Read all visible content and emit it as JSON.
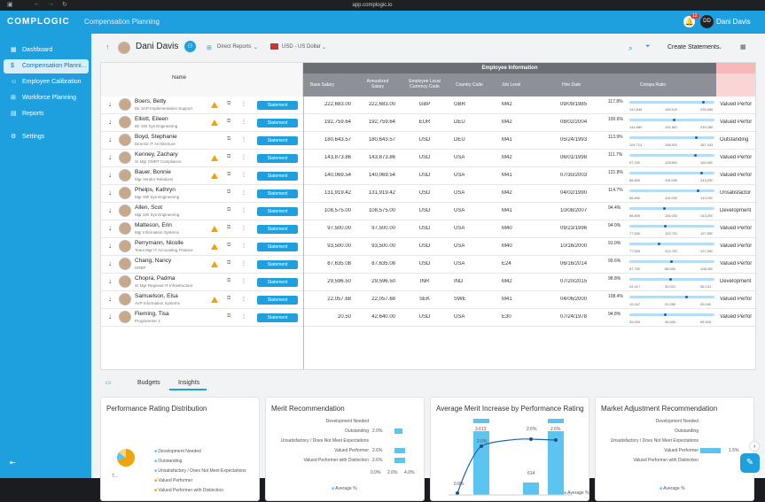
{
  "browser": {
    "url": "app.complogic.io"
  },
  "app": {
    "logo": "COMPLOGIC",
    "page_title": "Compensation Planning",
    "notifications": "12",
    "user_initials": "DD",
    "user_name": "Dani Davis"
  },
  "sidebar": {
    "items": [
      {
        "label": "Dashboard",
        "icon": "grid-icon"
      },
      {
        "label": "Compensation Planni...",
        "icon": "dollar-icon",
        "active": true
      },
      {
        "label": "Employee Calibration",
        "icon": "users-icon"
      },
      {
        "label": "Workforce Planning",
        "icon": "org-icon"
      },
      {
        "label": "Reports",
        "icon": "report-icon"
      },
      {
        "label": "Settings",
        "icon": "gear-icon"
      }
    ]
  },
  "header": {
    "manager": "Dani Davis",
    "view": "Direct Reports",
    "currency": "USD - US Dollar",
    "create": "Create Statements"
  },
  "grid": {
    "group_header": "Employee Information",
    "columns": {
      "name": "Name",
      "base_salary": "Base Salary",
      "annualized": "Annualized Salary",
      "local_currency": "Employee Local Currency Code",
      "country": "Country Code",
      "job_level": "Job Level",
      "hire_date": "Hire Date",
      "compa": "Compa Ratio",
      "rating": ""
    },
    "statement_label": "Statement",
    "rows": [
      {
        "name": "Boers, Betty",
        "title": "Dir SAP Implementation Support",
        "warn": true,
        "base": "222,683.00",
        "annual": "222,683.00",
        "cur": "GBP",
        "country": "GBR",
        "level": "M42",
        "hire": "09/09/1985",
        "compa": "117.8%",
        "cpos": 0.88,
        "min": "142,648",
        "mid": "169,019",
        "max": "235,056",
        "rating": "Valued Perfor"
      },
      {
        "name": "Elliott, Eileen",
        "title": "Dir SW Sys Engineering",
        "warn": true,
        "base": "192,759.64",
        "annual": "192,759.64",
        "cur": "EUR",
        "country": "DEU",
        "level": "M42",
        "hire": "08/02/2004",
        "compa": "100.6%",
        "cpos": 0.53,
        "min": "144,089",
        "mid": "191,687",
        "max": "239,286",
        "rating": "Valued Perfor"
      },
      {
        "name": "Boyd, Stephanie",
        "title": "Director IT Architecture",
        "warn": false,
        "base": "180,643.57",
        "annual": "180,643.57",
        "cur": "USD",
        "country": "DEU",
        "level": "M41",
        "hire": "05/24/1993",
        "compa": "113.9%",
        "cpos": 0.8,
        "min": "119,714",
        "mid": "158,929",
        "max": "187,434",
        "rating": "Outstanding"
      },
      {
        "name": "Kenney, Zachary",
        "title": "Sr Mgr CMRT Compliance",
        "warn": true,
        "base": "143,873.86",
        "annual": "143,873.86",
        "cur": "USD",
        "country": "USA",
        "level": "M42",
        "hire": "06/01/1998",
        "compa": "111.7%",
        "cpos": 0.78,
        "min": "97,200",
        "mid": "128,800",
        "max": "160,400",
        "rating": "Valued Perfor"
      },
      {
        "name": "Bauer, Bonnie",
        "title": "Mgr Vendor Relations",
        "warn": true,
        "base": "140,069.54",
        "annual": "140,069.54",
        "cur": "USD",
        "country": "USA",
        "level": "M41",
        "hire": "07/30/2003",
        "compa": "121.8%",
        "cpos": 0.86,
        "min": "86,800",
        "mid": "115,000",
        "max": "143,200",
        "rating": "Valued Perfor"
      },
      {
        "name": "Phelps, Kathryn",
        "title": "Mgr SW Sys Engineering",
        "warn": false,
        "base": "131,919.42",
        "annual": "131,919.42",
        "cur": "USD",
        "country": "USA",
        "level": "M42",
        "hire": "04/02/1990",
        "compa": "114.7%",
        "cpos": 0.82,
        "min": "86,800",
        "mid": "115,000",
        "max": "143,200",
        "rating": "Unsatisfactor"
      },
      {
        "name": "Allen, Scot",
        "title": "Mgr SW Sys Engineering",
        "warn": false,
        "base": "108,575.00",
        "annual": "108,575.00",
        "cur": "USD",
        "country": "USA",
        "level": "M41",
        "hire": "10/08/2007",
        "compa": "94.4%",
        "cpos": 0.41,
        "min": "86,800",
        "mid": "115,000",
        "max": "143,200",
        "rating": "Development"
      },
      {
        "name": "Matteson, Erin",
        "title": "Mgr Information Systems",
        "warn": true,
        "base": "97,500.00",
        "annual": "97,500.00",
        "cur": "USD",
        "country": "USA",
        "level": "M40",
        "hire": "09/23/1996",
        "compa": "94.9%",
        "cpos": 0.42,
        "min": "77,500",
        "mid": "102,700",
        "max": "127,900",
        "rating": "Valued Perfor"
      },
      {
        "name": "Perrymann, Nicolle",
        "title": "Team Mgr IT Accounting Finance",
        "warn": true,
        "base": "93,500.00",
        "annual": "93,500.00",
        "cur": "USD",
        "country": "USA",
        "level": "M40",
        "hire": "10/16/2000",
        "compa": "91.0%",
        "cpos": 0.34,
        "min": "77,500",
        "mid": "102,700",
        "max": "127,900",
        "rating": "Valued Perfor"
      },
      {
        "name": "Chang, Nancy",
        "title": "HRBP",
        "warn": true,
        "base": "87,635.08",
        "annual": "87,635.08",
        "cur": "USD",
        "country": "USA",
        "level": "E24",
        "hire": "06/16/2014",
        "compa": "99.6%",
        "cpos": 0.49,
        "min": "67,700",
        "mid": "88,000",
        "max": "108,400",
        "rating": "Valued Perfor"
      },
      {
        "name": "Chopra, Padma",
        "title": "Sr Mgr Regional IT Infrastructure",
        "warn": false,
        "base": "29,596.50",
        "annual": "29,596.50",
        "cur": "INR",
        "country": "IND",
        "level": "M42",
        "hire": "07/20/2015",
        "compa": "98.8%",
        "cpos": 0.48,
        "min": "24,417",
        "mid": "30,011",
        "max": "36,131",
        "rating": "Development"
      },
      {
        "name": "Samuelson, Elsa",
        "title": "AVP Information Systems",
        "warn": true,
        "base": "22,057.68",
        "annual": "22,057.68",
        "cur": "SEK",
        "country": "SWE",
        "level": "M41",
        "hire": "04/06/2000",
        "compa": "108.4%",
        "cpos": 0.68,
        "min": "15,347",
        "mid": "20,350",
        "max": "25,040",
        "rating": "Valued Perfor"
      },
      {
        "name": "Fleming, Tisa",
        "title": "Programmer 1",
        "warn": false,
        "base": "20.50",
        "annual": "42,640.00",
        "cur": "USD",
        "country": "USA",
        "level": "E30",
        "hire": "07/24/1978",
        "compa": "94.8%",
        "cpos": 0.42,
        "min": "35,000",
        "mid": "45,000",
        "max": "55,500",
        "rating": "Valued Perfor"
      }
    ]
  },
  "tabs": {
    "budgets": "Budgets",
    "insights": "Insights"
  },
  "cards": {
    "perf": {
      "title": "Performance Rating Distribution",
      "legend": [
        "Development Needed",
        "Outstanding",
        "Unsatisfactory / Does Not Meet Expectations",
        "Valued Performer",
        "Valued Performer with Distinction"
      ],
      "label": "7..."
    },
    "merit": {
      "title": "Merit Recommendation",
      "cats": [
        "Development Needed",
        "Outstanding",
        "Unsatisfactory / Does Not Meet Expectations",
        "Valued Performer",
        "Valued Performer with Distinction"
      ],
      "values": [
        "",
        "2.0%",
        "",
        "2.6%",
        "2.6%"
      ],
      "ticks": [
        "0.0%",
        "2.0%",
        "4.0%"
      ],
      "legend": "Average %"
    },
    "avg": {
      "title": "Average Merit Increase by Performance Rating",
      "labels": [
        "0.0%",
        "2.0%",
        "3,613",
        "2.6%",
        "614",
        "2.6%"
      ],
      "legend": "Average %"
    },
    "adj": {
      "title": "Market Adjustment Recommendation",
      "cats": [
        "Development Needed",
        "Outstanding",
        "Unsatisfactory / Does Not Meet Expectations",
        "Valued Performer",
        "Valued Performer with Distinction"
      ],
      "value": "1.5%",
      "legend": "Average %"
    }
  },
  "chart_data": [
    {
      "type": "bar",
      "title": "Merit Recommendation",
      "categories": [
        "Development Needed",
        "Outstanding",
        "Unsatisfactory / Does Not Meet Expectations",
        "Valued Performer",
        "Valued Performer with Distinction"
      ],
      "values": [
        0,
        2.0,
        0,
        2.6,
        2.6
      ],
      "xlim": [
        0,
        4
      ]
    },
    {
      "type": "bar",
      "title": "Market Adjustment Recommendation",
      "categories": [
        "Development Needed",
        "Outstanding",
        "Unsatisfactory / Does Not Meet Expectations",
        "Valued Performer",
        "Valued Performer with Distinction"
      ],
      "values": [
        0,
        0,
        0,
        1.5,
        0
      ]
    }
  ]
}
